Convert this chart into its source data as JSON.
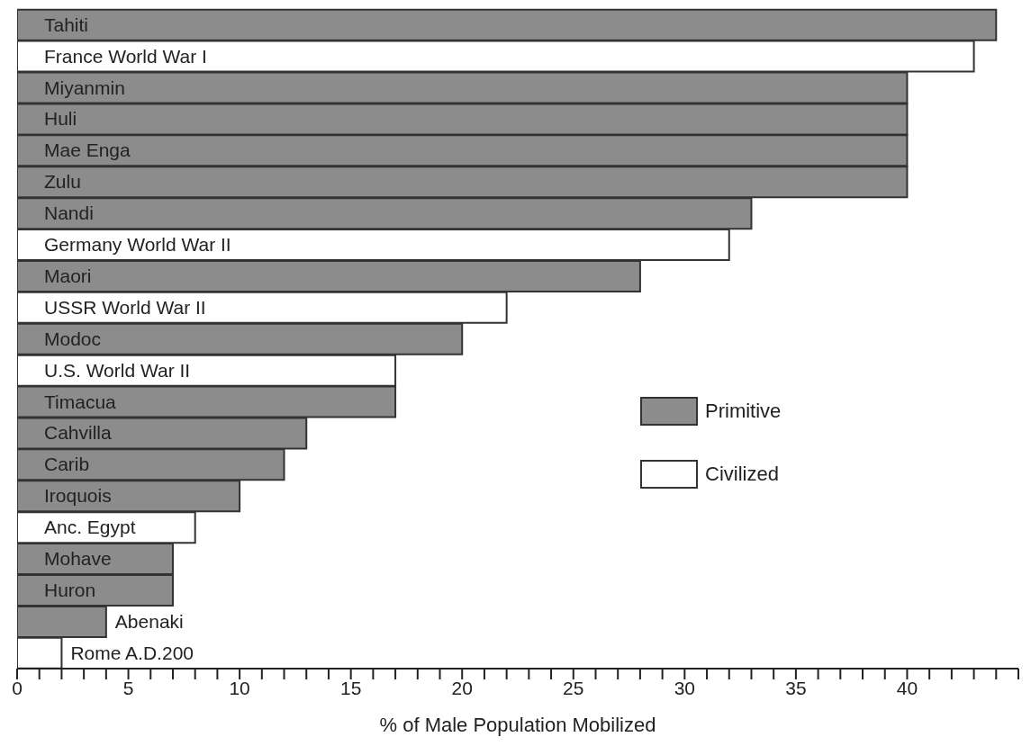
{
  "chart_data": {
    "type": "bar",
    "orientation": "horizontal",
    "xlabel": "% of Male Population Mobilized",
    "categories": [
      "Tahiti",
      "France World War I",
      "Miyanmin",
      "Huli",
      "Mae Enga",
      "Zulu",
      "Nandi",
      "Germany World War II",
      "Maori",
      "USSR World War II",
      "Modoc",
      "U.S. World War II",
      "Timacua",
      "Cahvilla",
      "Carib",
      "Iroquois",
      "Anc. Egypt",
      "Mohave",
      "Huron",
      "Abenaki",
      "Rome A.D.200"
    ],
    "series": [
      {
        "name": "Primitive",
        "color": "#8c8c8c",
        "values": [
          44,
          null,
          40,
          40,
          40,
          40,
          33,
          null,
          28,
          null,
          20,
          null,
          17,
          13,
          12,
          10,
          null,
          7,
          7,
          4,
          null
        ]
      },
      {
        "name": "Civilized",
        "color": "#ffffff",
        "values": [
          null,
          43,
          null,
          null,
          null,
          null,
          null,
          32,
          null,
          22,
          null,
          17,
          null,
          null,
          null,
          null,
          8,
          null,
          null,
          null,
          2
        ]
      }
    ],
    "xlim": [
      0,
      45
    ],
    "xticks": [
      0,
      {
        "value": 1,
        "label": null
      },
      {
        "value": 2,
        "label": null
      },
      {
        "value": 3,
        "label": null
      },
      {
        "value": 4,
        "label": null
      },
      5,
      {
        "value": 6,
        "label": null
      },
      {
        "value": 7,
        "label": null
      },
      {
        "value": 8,
        "label": null
      },
      {
        "value": 9,
        "label": null
      },
      10,
      {
        "value": 11,
        "label": null
      },
      {
        "value": 12,
        "label": null
      },
      {
        "value": 13,
        "label": null
      },
      {
        "value": 14,
        "label": null
      },
      15,
      {
        "value": 16,
        "label": null
      },
      {
        "value": 17,
        "label": null
      },
      {
        "value": 18,
        "label": null
      },
      {
        "value": 19,
        "label": null
      },
      20,
      {
        "value": 21,
        "label": null
      },
      {
        "value": 22,
        "label": null
      },
      {
        "value": 23,
        "label": null
      },
      {
        "value": 24,
        "label": null
      },
      25,
      {
        "value": 26,
        "label": null
      },
      {
        "value": 27,
        "label": null
      },
      {
        "value": 28,
        "label": null
      },
      {
        "value": 29,
        "label": null
      },
      30,
      {
        "value": 31,
        "label": null
      },
      {
        "value": 32,
        "label": null
      },
      {
        "value": 33,
        "label": null
      },
      {
        "value": 34,
        "label": null
      },
      35,
      {
        "value": 36,
        "label": null
      },
      {
        "value": 37,
        "label": null
      },
      {
        "value": 38,
        "label": null
      },
      {
        "value": 39,
        "label": null
      },
      40,
      {
        "value": 41,
        "label": null
      },
      {
        "value": 42,
        "label": null
      },
      {
        "value": 43,
        "label": null
      },
      {
        "value": 44,
        "label": null
      },
      {
        "value": 45,
        "label": null
      }
    ],
    "grid": false,
    "legend": "right"
  }
}
